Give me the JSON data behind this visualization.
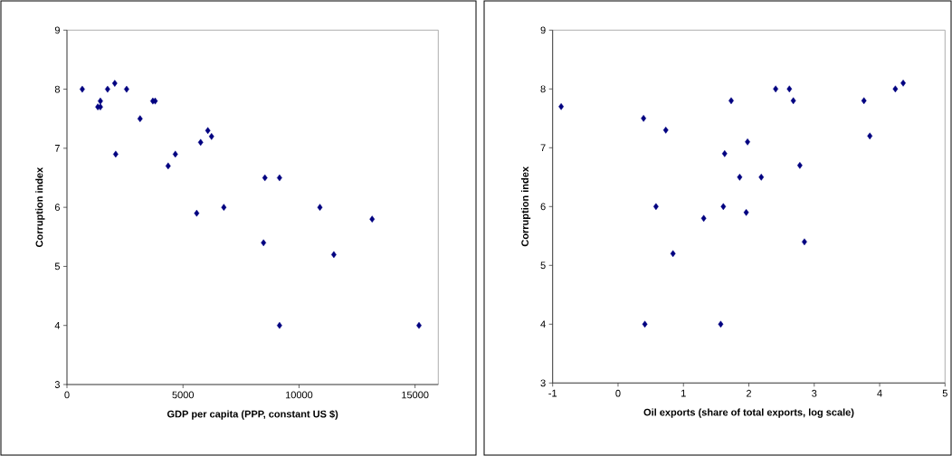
{
  "chart_data": [
    {
      "type": "scatter",
      "xlabel": "GDP per capita (PPP, constant US $)",
      "ylabel": "Corruption index",
      "color": "#000080",
      "marker": "diamond",
      "x": [
        660,
        1330,
        1440,
        1440,
        1750,
        2060,
        2100,
        2570,
        3150,
        3700,
        3800,
        4360,
        4670,
        5590,
        5760,
        6070,
        6230,
        6760,
        8470,
        8530,
        9160,
        9160,
        10900,
        11500,
        13150,
        15170
      ],
      "values": [
        8.0,
        7.7,
        7.7,
        7.8,
        8.0,
        8.1,
        6.9,
        8.0,
        7.5,
        7.8,
        7.8,
        6.7,
        6.9,
        5.9,
        7.1,
        7.3,
        7.2,
        6.0,
        5.4,
        6.5,
        6.5,
        4.0,
        6.0,
        5.2,
        5.8,
        4.0
      ],
      "xlim": [
        0,
        16000
      ],
      "ylim": [
        3,
        9
      ],
      "xticks": [
        0,
        5000,
        10000,
        15000
      ],
      "yticks": [
        3,
        4,
        5,
        6,
        7,
        8,
        9
      ]
    },
    {
      "type": "scatter",
      "xlabel": "Oil exports (share of total exports, log scale)",
      "ylabel": "Corruption index",
      "color": "#000080",
      "marker": "diamond",
      "x": [
        -0.87,
        0.39,
        0.41,
        0.58,
        0.73,
        0.84,
        1.31,
        1.57,
        1.61,
        1.63,
        1.73,
        1.86,
        1.96,
        1.98,
        2.19,
        2.41,
        2.62,
        2.68,
        2.78,
        2.85,
        3.76,
        3.85,
        4.24,
        4.36
      ],
      "values": [
        7.7,
        7.5,
        4.0,
        6.0,
        7.3,
        5.2,
        5.8,
        4.0,
        6.0,
        6.9,
        7.8,
        6.5,
        5.9,
        7.1,
        6.5,
        8.0,
        8.0,
        7.8,
        6.7,
        5.4,
        7.8,
        7.2,
        8.0,
        8.1
      ],
      "xlim": [
        -1,
        5
      ],
      "ylim": [
        3,
        9
      ],
      "xticks": [
        -1,
        0,
        1,
        2,
        3,
        4,
        5
      ],
      "yticks": [
        3,
        4,
        5,
        6,
        7,
        8,
        9
      ]
    }
  ]
}
